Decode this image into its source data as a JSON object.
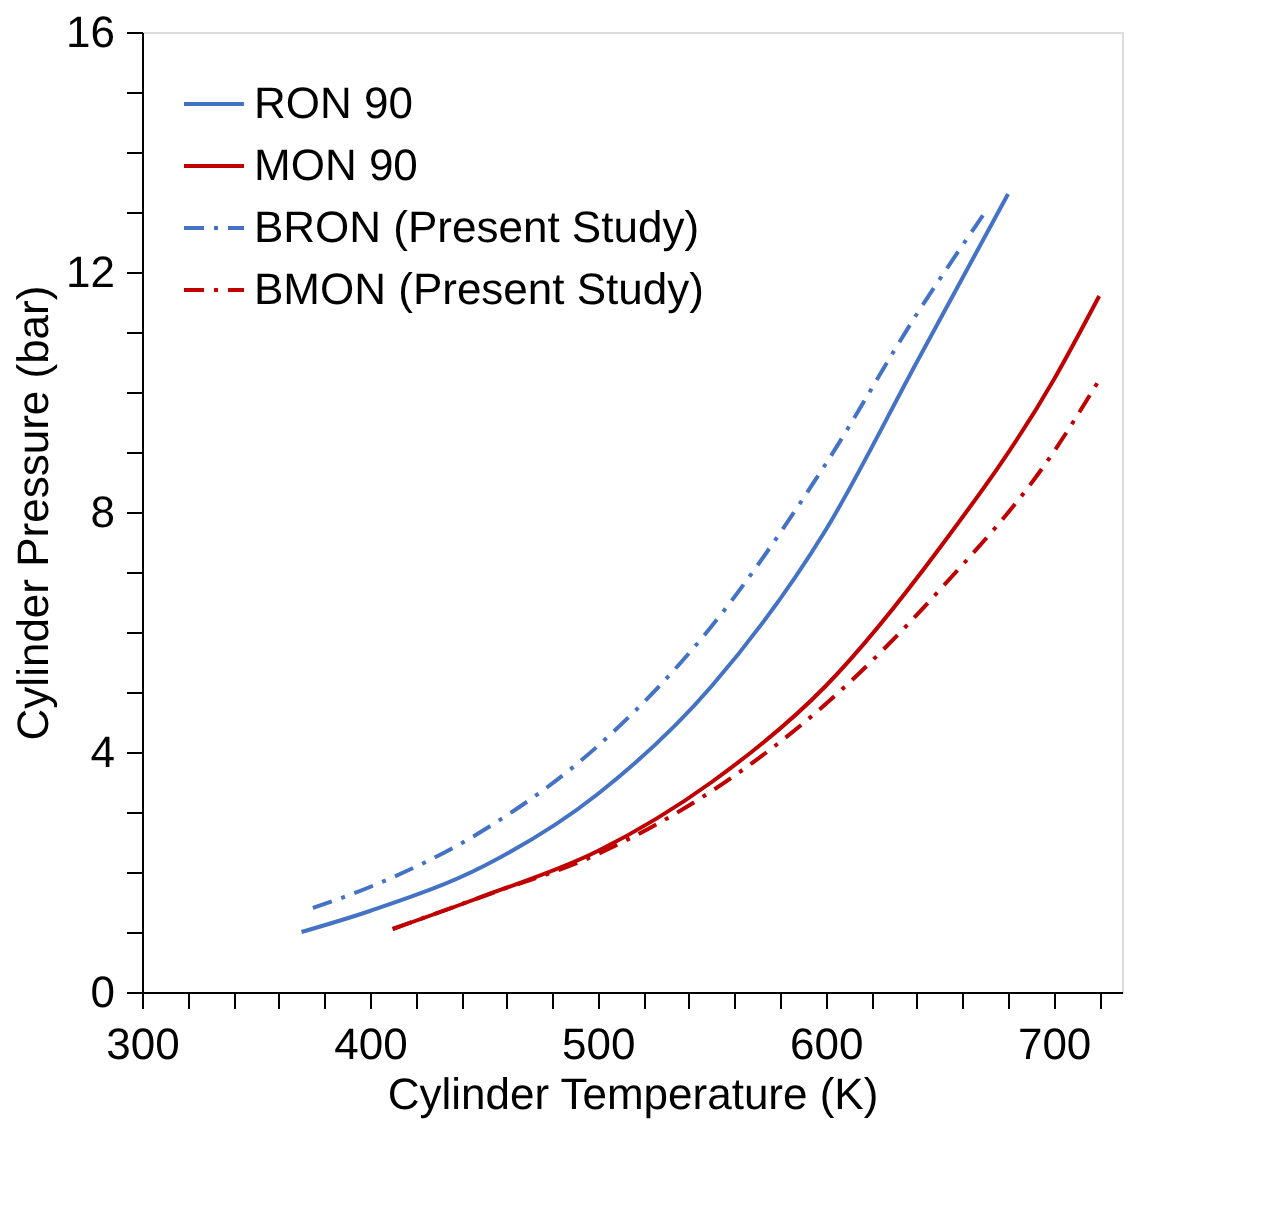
{
  "chart_data": {
    "type": "line",
    "xlabel": "Cylinder Temperature (K)",
    "ylabel": "Cylinder Pressure (bar)",
    "xlim": [
      300,
      730
    ],
    "ylim": [
      0,
      16
    ],
    "xticks": [
      300,
      {
        "value": 320,
        "label": null
      },
      {
        "value": 340,
        "label": null
      },
      {
        "value": 360,
        "label": null
      },
      {
        "value": 380,
        "label": null
      },
      400,
      {
        "value": 420,
        "label": null
      },
      {
        "value": 440,
        "label": null
      },
      {
        "value": 460,
        "label": null
      },
      {
        "value": 480,
        "label": null
      },
      500,
      {
        "value": 520,
        "label": null
      },
      {
        "value": 540,
        "label": null
      },
      {
        "value": 560,
        "label": null
      },
      {
        "value": 580,
        "label": null
      },
      600,
      {
        "value": 620,
        "label": null
      },
      {
        "value": 640,
        "label": null
      },
      {
        "value": 660,
        "label": null
      },
      {
        "value": 680,
        "label": null
      },
      700,
      {
        "value": 720,
        "label": null
      }
    ],
    "yticks": [
      0,
      {
        "value": 1,
        "label": null
      },
      {
        "value": 2,
        "label": null
      },
      {
        "value": 3,
        "label": null
      },
      4,
      {
        "value": 5,
        "label": null
      },
      {
        "value": 6,
        "label": null
      },
      {
        "value": 7,
        "label": null
      },
      8,
      {
        "value": 9,
        "label": null
      },
      {
        "value": 10,
        "label": null
      },
      {
        "value": 11,
        "label": null
      },
      12,
      {
        "value": 13,
        "label": null
      },
      {
        "value": 14,
        "label": null
      },
      {
        "value": 15,
        "label": null
      },
      16
    ],
    "grid": false,
    "legend": "top left",
    "marker": "none",
    "series": [
      {
        "name": "RON 90",
        "color": "#4472c4",
        "line_style": "solid",
        "x": [
          370,
          400,
          450,
          500,
          550,
          600,
          640,
          680
        ],
        "values": [
          1.0,
          1.35,
          2.1,
          3.3,
          5.1,
          7.7,
          10.5,
          13.3
        ]
      },
      {
        "name": "MON 90",
        "color": "#c00000",
        "line_style": "solid",
        "x": [
          410,
          450,
          500,
          550,
          600,
          650,
          700,
          720
        ],
        "values": [
          1.05,
          1.6,
          2.35,
          3.5,
          5.1,
          7.4,
          10.2,
          11.6
        ]
      },
      {
        "name": "BRON (Present Study)",
        "color": "#4472c4",
        "line_style": "dashed",
        "x": [
          375,
          400,
          450,
          500,
          550,
          600,
          640,
          670
        ],
        "values": [
          1.4,
          1.75,
          2.7,
          4.1,
          6.1,
          8.8,
          11.3,
          13.0
        ]
      },
      {
        "name": "BMON (Present Study)",
        "color": "#c00000",
        "line_style": "dashed",
        "x": [
          410,
          450,
          500,
          550,
          600,
          650,
          700,
          720
        ],
        "values": [
          1.05,
          1.6,
          2.3,
          3.35,
          4.8,
          6.7,
          9.0,
          10.2
        ]
      }
    ]
  }
}
